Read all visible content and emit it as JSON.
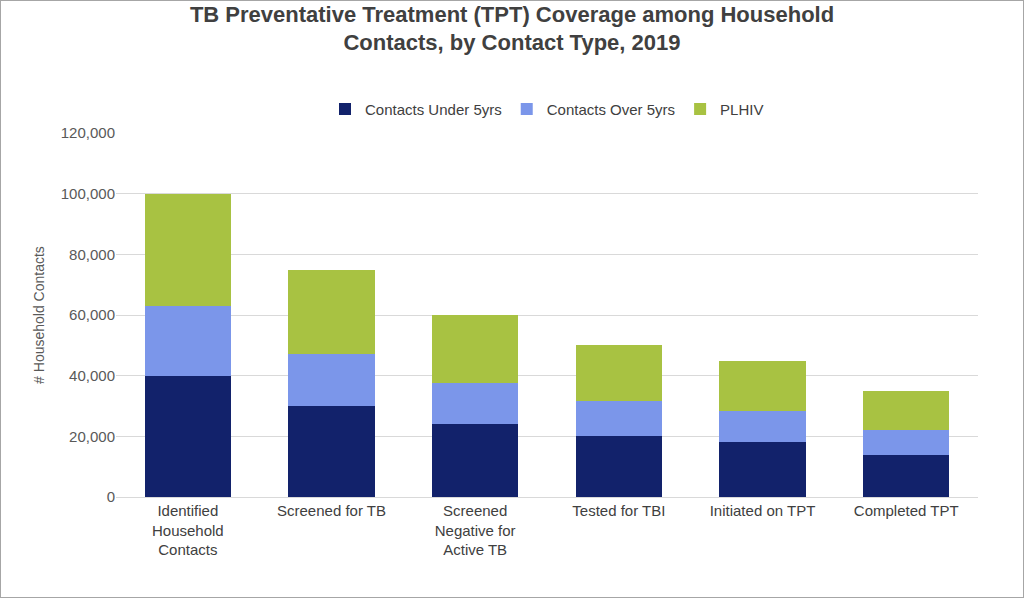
{
  "chart_data": {
    "type": "bar",
    "stacked": true,
    "title": "TB Preventative Treatment (TPT) Coverage among Household Contacts, by Contact Type, 2019",
    "y_label": "# Household Contacts",
    "categories": [
      "Identified Household Contacts",
      "Screened for TB",
      "Screened Negative for Active TB",
      "Tested for TBI",
      "Initiated on TPT",
      "Completed TPT"
    ],
    "series": [
      {
        "name": "Contacts Under 5yrs",
        "color": "#12226b",
        "values": [
          40000,
          30000,
          24000,
          20000,
          18000,
          14000
        ]
      },
      {
        "name": "Contacts Over 5yrs",
        "color": "#7b96ea",
        "values": [
          23000,
          17000,
          13500,
          11500,
          10500,
          8000
        ]
      },
      {
        "name": "PLHIV",
        "color": "#a8c242",
        "values": [
          37000,
          28000,
          22500,
          18500,
          16500,
          13000
        ]
      }
    ],
    "ylim": [
      0,
      120000
    ],
    "yticks": [
      0,
      {
        "value": 20000,
        "label": "20,000"
      },
      {
        "value": 40000,
        "label": "40,000"
      },
      {
        "value": 60000,
        "label": "60,000"
      },
      {
        "value": 80000,
        "label": "80,000"
      },
      {
        "value": 100000,
        "label": "100,000"
      },
      {
        "value": 120000,
        "label": "120,000"
      }
    ],
    "grid": true,
    "legend": "top"
  }
}
